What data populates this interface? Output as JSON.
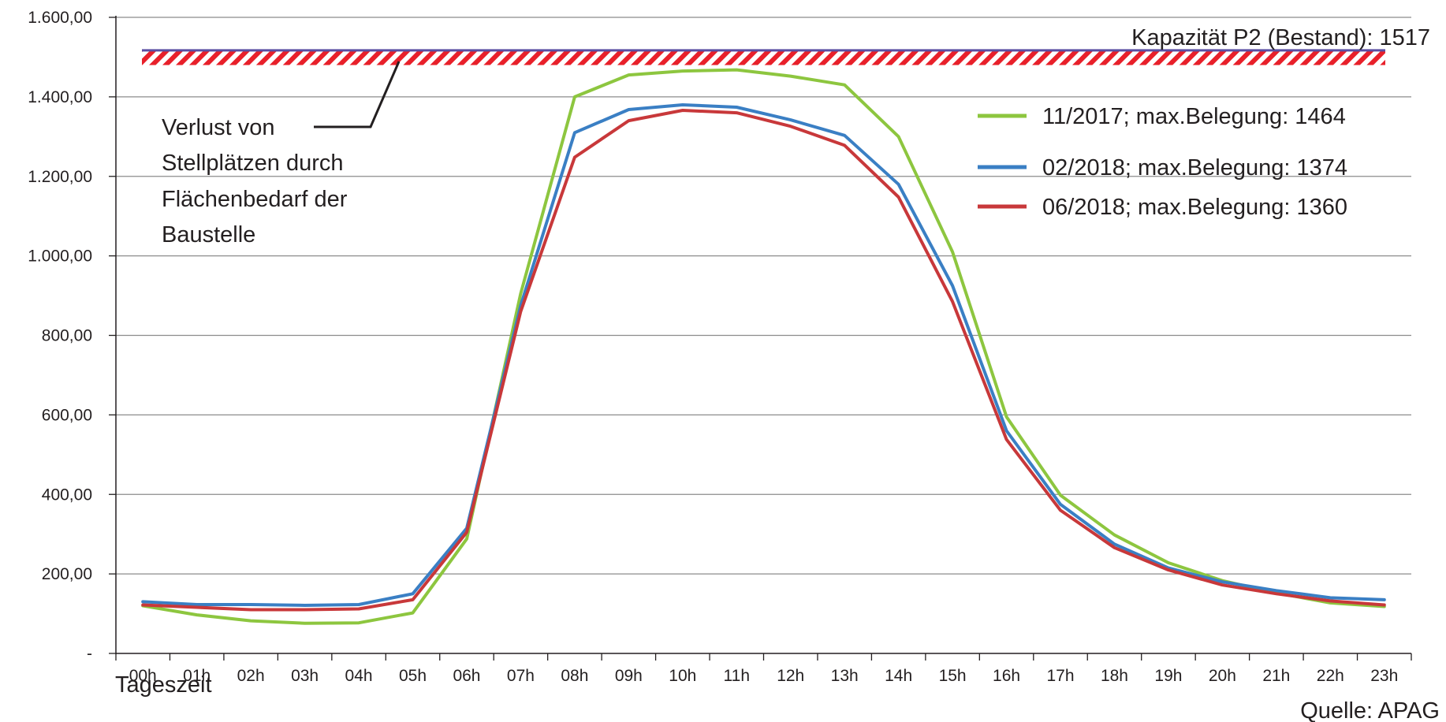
{
  "chart_data": {
    "type": "line",
    "xlabel": "Tageszeit",
    "ylabel": "",
    "ylim": [
      0,
      1600
    ],
    "yticks": [
      0,
      200,
      400,
      600,
      800,
      1000,
      1200,
      1400,
      1600
    ],
    "ytick_labels": [
      "-",
      "200,00",
      "400,00",
      "600,00",
      "800,00",
      "1.000,00",
      "1.200,00",
      "1.400,00",
      "1.600,00"
    ],
    "categories": [
      "00h",
      "01h",
      "02h",
      "03h",
      "04h",
      "05h",
      "06h",
      "07h",
      "08h",
      "09h",
      "10h",
      "11h",
      "12h",
      "13h",
      "14h",
      "15h",
      "16h",
      "17h",
      "18h",
      "19h",
      "20h",
      "21h",
      "22h",
      "23h"
    ],
    "grid": "horizontal",
    "legend_position": "right",
    "series": [
      {
        "name": "11/2017; max.Belegung: 1464",
        "color": "#8dc63f",
        "values": [
          120,
          97,
          82,
          76,
          77,
          102,
          288,
          905,
          1400,
          1455,
          1465,
          1468,
          1452,
          1430,
          1300,
          1010,
          595,
          398,
          298,
          228,
          183,
          152,
          127,
          118
        ]
      },
      {
        "name": "02/2018; max.Belegung: 1374",
        "color": "#3a7fc4",
        "values": [
          130,
          123,
          123,
          121,
          123,
          150,
          315,
          875,
          1310,
          1368,
          1380,
          1374,
          1342,
          1303,
          1180,
          925,
          560,
          375,
          275,
          215,
          180,
          158,
          140,
          135
        ]
      },
      {
        "name": "06/2018; max.Belegung: 1360",
        "color": "#c8383a",
        "values": [
          122,
          116,
          110,
          110,
          112,
          135,
          305,
          860,
          1248,
          1340,
          1366,
          1360,
          1326,
          1278,
          1148,
          885,
          538,
          360,
          266,
          210,
          172,
          150,
          132,
          122
        ]
      }
    ],
    "capacity": {
      "label": "Kapazität P2 (Bestand): 1517",
      "value": 1517,
      "color": "#5a4fa3",
      "hatch_low": 1480,
      "hatch_color": "#e8202a"
    },
    "annotation": {
      "lines": [
        "Verlust von",
        "Stellplätzen durch",
        "Flächenbedarf der",
        "Baustelle"
      ]
    },
    "source": "Quelle: APAG"
  }
}
